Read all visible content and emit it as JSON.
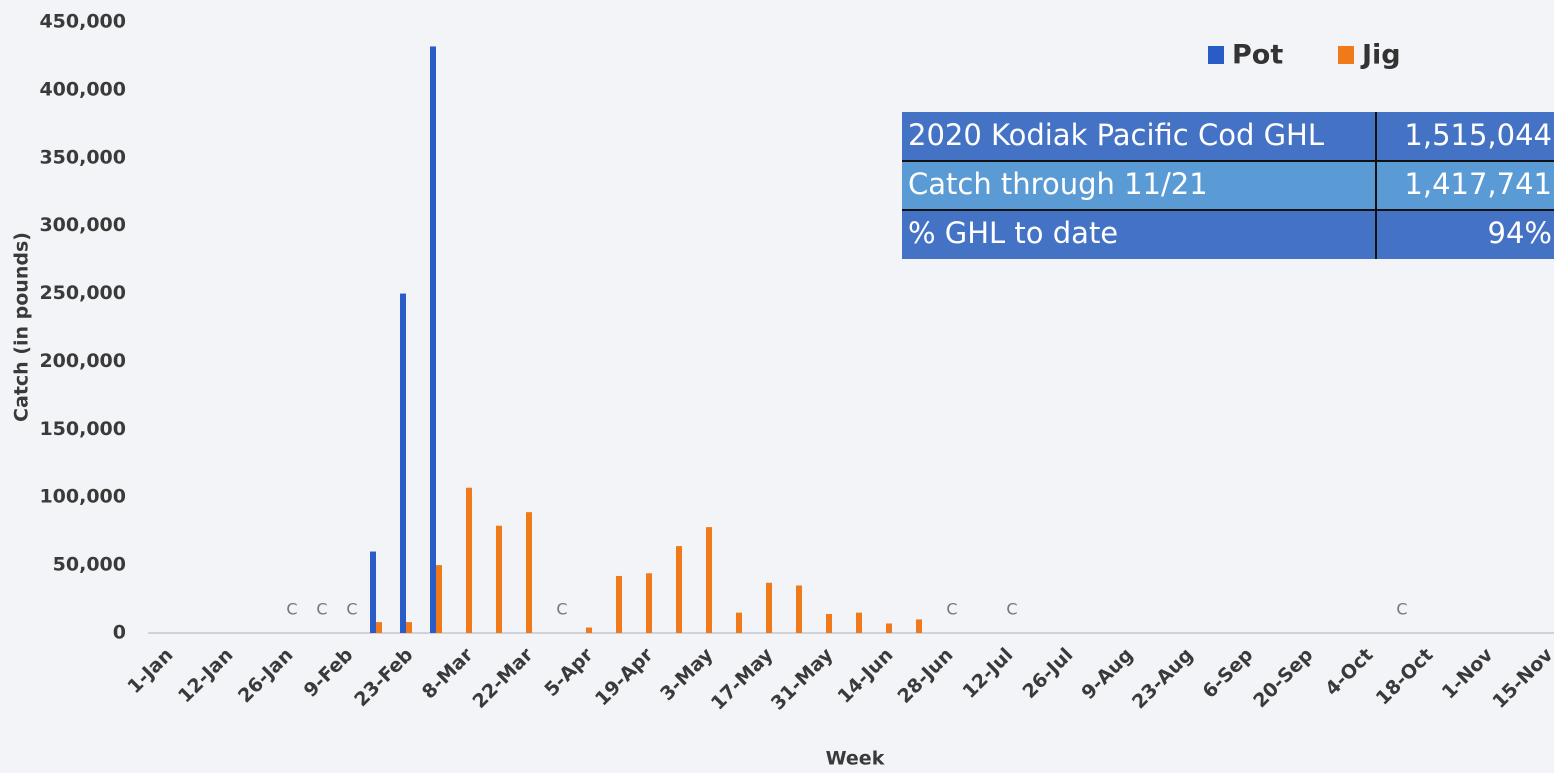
{
  "chart_data": {
    "type": "bar",
    "x_label": "Week",
    "y_label": "Catch (in pounds)",
    "categories": [
      "1-Jan",
      null,
      "12-Jan",
      null,
      "26-Jan",
      null,
      "9-Feb",
      null,
      "23-Feb",
      null,
      "8-Mar",
      null,
      "22-Mar",
      null,
      "5-Apr",
      null,
      "19-Apr",
      null,
      "3-May",
      null,
      "17-May",
      null,
      "31-May",
      null,
      "14-Jun",
      null,
      "28-Jun",
      null,
      "12-Jul",
      null,
      "26-Jul",
      null,
      "9-Aug",
      null,
      "23-Aug",
      null,
      "6-Sep",
      null,
      "20-Sep",
      null,
      "4-Oct",
      null,
      "18-Oct",
      null,
      "1-Nov",
      null,
      "15-Nov"
    ],
    "series": [
      {
        "name": "Pot",
        "color": "#2a5cc8",
        "values": [
          null,
          null,
          null,
          null,
          null,
          null,
          null,
          60000,
          250000,
          432000,
          null,
          null,
          null,
          null,
          null,
          null,
          null,
          null,
          null,
          null,
          null,
          null,
          null,
          null,
          null,
          null,
          null,
          null,
          null,
          null,
          null,
          null,
          null,
          null,
          null,
          null,
          null,
          null,
          null,
          null,
          null,
          null,
          null,
          null,
          null,
          null,
          null
        ],
        "value_labels": [
          null,
          null,
          null,
          null,
          "C",
          "C",
          "C",
          null,
          null,
          null,
          null,
          null,
          null,
          "C",
          null,
          null,
          null,
          null,
          null,
          null,
          null,
          null,
          null,
          null,
          null,
          null,
          "C",
          null,
          "C",
          null,
          null,
          null,
          null,
          null,
          null,
          null,
          null,
          null,
          null,
          null,
          null,
          "C",
          null,
          null,
          null,
          null,
          null
        ]
      },
      {
        "name": "Jig",
        "color": "#f07a1a",
        "values": [
          null,
          null,
          null,
          null,
          null,
          null,
          null,
          8000,
          8000,
          50000,
          107000,
          79000,
          89000,
          null,
          4000,
          42000,
          44000,
          64000,
          78000,
          15000,
          37000,
          35000,
          14000,
          15000,
          7000,
          10000,
          null,
          null,
          null,
          null,
          null,
          null,
          null,
          null,
          null,
          null,
          null,
          null,
          null,
          null,
          null,
          null,
          null,
          null,
          null,
          null,
          null
        ]
      }
    ],
    "ylim": [
      0,
      450000
    ],
    "yticks": [
      0,
      {
        "value": 50000,
        "label": "50,000"
      },
      {
        "value": 100000,
        "label": "100,000"
      },
      {
        "value": 150000,
        "label": "150,000"
      },
      {
        "value": 200000,
        "label": "200,000"
      },
      {
        "value": 250000,
        "label": "250,000"
      },
      {
        "value": 300000,
        "label": "300,000"
      },
      {
        "value": 350000,
        "label": "350,000"
      },
      {
        "value": 400000,
        "label": "400,000"
      },
      {
        "value": 450000,
        "label": "450,000"
      }
    ],
    "legend": "top-right"
  },
  "table": {
    "rows": [
      [
        "2020 Kodiak Pacific Cod GHL",
        "1,515,044"
      ],
      [
        "Catch through 11/21",
        "1,417,741"
      ],
      [
        "% GHL to date",
        "94%"
      ]
    ]
  }
}
